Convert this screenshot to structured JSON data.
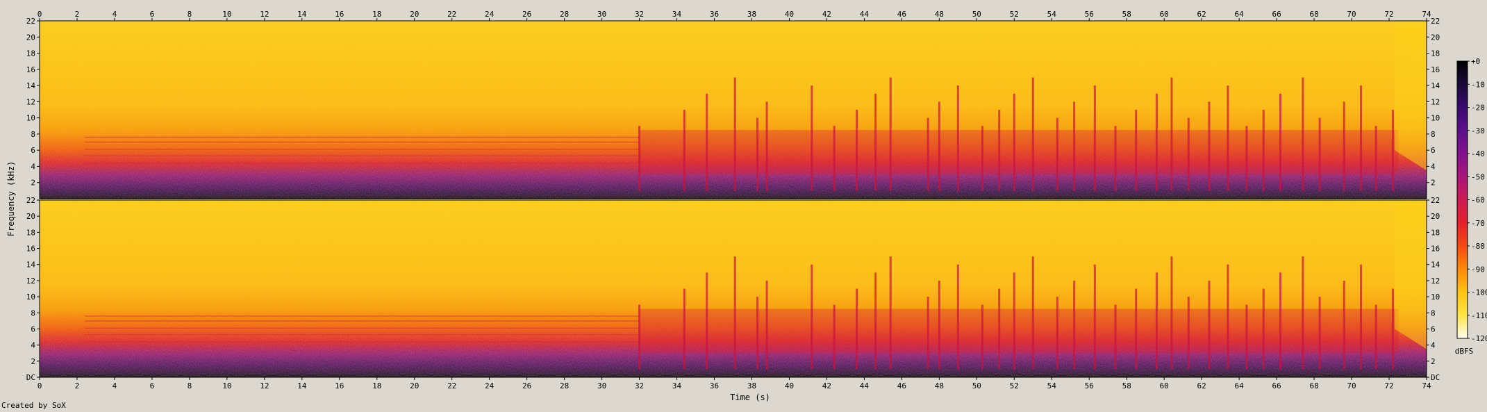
{
  "footer": {
    "created_by": "Created by SoX"
  },
  "chart_data": {
    "type": "heatmap",
    "title": "",
    "xlabel": "Time (s)",
    "ylabel": "Frequency (kHz)",
    "x_range": [
      0,
      74
    ],
    "x_ticks": [
      0,
      2,
      4,
      6,
      8,
      10,
      12,
      14,
      16,
      18,
      20,
      22,
      24,
      26,
      28,
      30,
      32,
      34,
      36,
      38,
      40,
      42,
      44,
      46,
      48,
      50,
      52,
      54,
      56,
      58,
      60,
      62,
      64,
      66,
      68,
      70,
      72,
      74
    ],
    "channels": [
      {
        "y_range": [
          0,
          22
        ],
        "y_ticks": [
          "22",
          "20",
          "18",
          "16",
          "14",
          "12",
          "10",
          "8",
          "6",
          "4",
          "2"
        ]
      },
      {
        "y_range": [
          0,
          22
        ],
        "y_ticks": [
          "22",
          "20",
          "18",
          "16",
          "14",
          "12",
          "10",
          "8",
          "6",
          "4",
          "2",
          "DC"
        ]
      }
    ],
    "colorbar": {
      "label": "dBFS",
      "range": [
        -120,
        0
      ],
      "ticks": [
        "+0",
        "-10",
        "-20",
        "-30",
        "-40",
        "-50",
        "-60",
        "-70",
        "-80",
        "-90",
        "-100",
        "-110",
        "-120"
      ],
      "colors": [
        "#000000",
        "#1a0a3a",
        "#3a0a6e",
        "#5c0f8a",
        "#82128c",
        "#a8157a",
        "#cc1a52",
        "#e6202a",
        "#f54a12",
        "#fb8a08",
        "#fdc40e",
        "#fde445",
        "#fffdf0"
      ]
    },
    "events": {
      "sustained_tone_khz": [
        4.4,
        5.3,
        6.1,
        7.0,
        7.6
      ],
      "transients_s": [
        32.0,
        34.4,
        35.6,
        37.1,
        38.3,
        38.8,
        41.2,
        42.4,
        43.6,
        44.6,
        45.4,
        47.4,
        48.0,
        49.0,
        50.3,
        51.2,
        52.0,
        53.0,
        54.3,
        55.2,
        56.3,
        57.4,
        58.5,
        59.6,
        60.4,
        61.3,
        62.4,
        63.4,
        64.4,
        65.3,
        66.2,
        67.4,
        68.3,
        69.6,
        70.5,
        71.3,
        72.2
      ]
    }
  }
}
